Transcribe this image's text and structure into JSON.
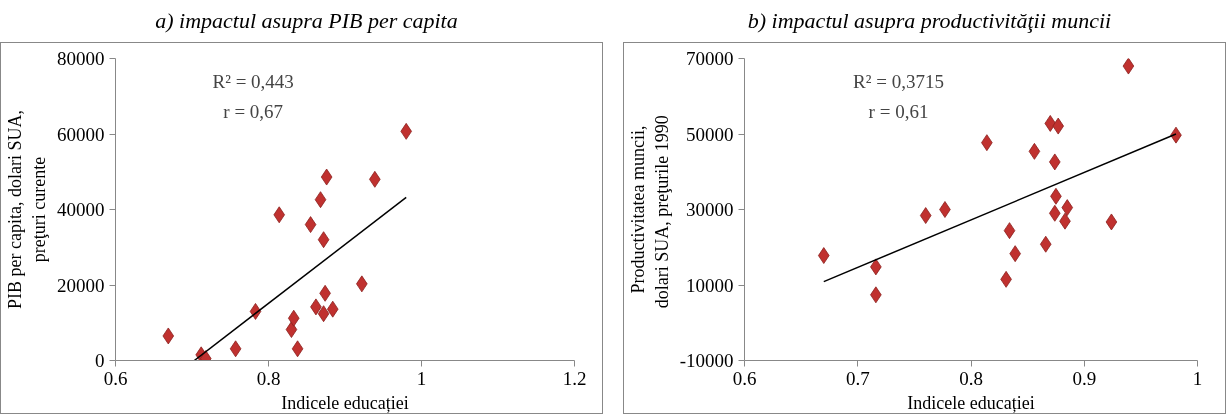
{
  "chart_data": [
    {
      "type": "scatter",
      "title": "a)   impactul asupra PIB per capita",
      "xlabel": "Indicele educației",
      "ylabel": "PIB per capita, dolari SUA,\npreţuri curente",
      "grid": false,
      "annotations": [
        "R² = 0,443",
        "r = 0,67"
      ],
      "xlim": [
        0.6,
        1.2
      ],
      "xticks": [
        0.6,
        0.8,
        1,
        1.2
      ],
      "ylim": [
        0,
        80000
      ],
      "yticks": [
        0,
        20000,
        40000,
        60000,
        80000
      ],
      "series": [
        {
          "marker": "diamond",
          "color": "#c0312f",
          "x": [
            0.669,
            0.712,
            0.718,
            0.757,
            0.783,
            0.814,
            0.83,
            0.833,
            0.838,
            0.855,
            0.868,
            0.876,
            0.872,
            0.874,
            0.862,
            0.872,
            0.884,
            0.922,
            0.939,
            0.98
          ],
          "values": [
            6500,
            1500,
            500,
            3100,
            13000,
            38600,
            8200,
            11200,
            3100,
            36000,
            42600,
            48600,
            32000,
            17800,
            14200,
            12400,
            13600,
            20300,
            48000,
            60700
          ]
        },
        {
          "type": "line",
          "color": "#000000",
          "x": [
            0.703,
            0.98
          ],
          "values": [
            0,
            43200
          ]
        }
      ]
    },
    {
      "type": "scatter",
      "title": "b)   impactul asupra productivităţii muncii",
      "xlabel": "Indicele educației",
      "ylabel": "Productivitatea muncii,\ndolari SUA,  preţurile 1990",
      "grid": false,
      "annotations": [
        "R² = 0,3715",
        "r = 0,61"
      ],
      "xlim": [
        0.6,
        1
      ],
      "xticks": [
        0.6,
        0.7,
        0.8,
        0.9,
        1
      ],
      "ylim": [
        -10000,
        70000
      ],
      "yticks": [
        -10000,
        10000,
        30000,
        50000,
        70000
      ],
      "series": [
        {
          "marker": "diamond",
          "color": "#c0312f",
          "x": [
            0.67,
            0.716,
            0.716,
            0.76,
            0.777,
            0.814,
            0.831,
            0.834,
            0.839,
            0.856,
            0.866,
            0.87,
            0.877,
            0.874,
            0.875,
            0.874,
            0.883,
            0.885,
            0.924,
            0.939,
            0.981
          ],
          "values": [
            17800,
            14800,
            7400,
            28400,
            30000,
            47700,
            11500,
            24400,
            18300,
            45400,
            20800,
            52800,
            52100,
            42600,
            33500,
            29000,
            26900,
            30500,
            26700,
            68000,
            49700
          ]
        },
        {
          "type": "line",
          "color": "#000000",
          "x": [
            0.67,
            0.981
          ],
          "values": [
            10900,
            50000
          ]
        }
      ]
    }
  ]
}
